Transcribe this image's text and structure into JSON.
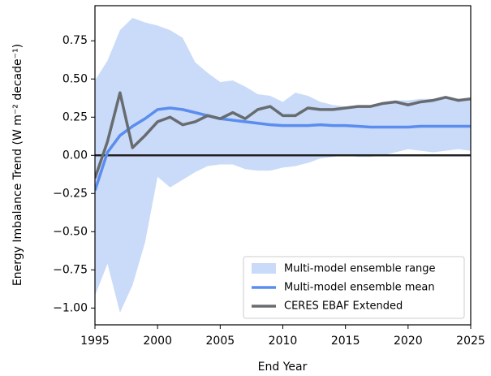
{
  "chart_data": {
    "type": "line",
    "xlabel": "End Year",
    "ylabel": "Energy Imbalance Trend (W m⁻² decade⁻¹)",
    "x": [
      1995,
      1996,
      1997,
      1998,
      1999,
      2000,
      2001,
      2002,
      2003,
      2004,
      2005,
      2006,
      2007,
      2008,
      2009,
      2010,
      2011,
      2012,
      2013,
      2014,
      2015,
      2016,
      2017,
      2018,
      2019,
      2020,
      2021,
      2022,
      2023,
      2024,
      2025
    ],
    "series": [
      {
        "name": "Multi-model ensemble range",
        "kind": "band",
        "color": "#c9dbf8",
        "high": [
          0.49,
          0.62,
          0.82,
          0.9,
          0.87,
          0.85,
          0.82,
          0.77,
          0.61,
          0.54,
          0.48,
          0.49,
          0.45,
          0.4,
          0.39,
          0.35,
          0.41,
          0.39,
          0.35,
          0.33,
          0.32,
          0.33,
          0.33,
          0.35,
          0.36,
          0.36,
          0.37,
          0.37,
          0.38,
          0.37,
          0.37
        ],
        "low": [
          -0.92,
          -0.71,
          -1.03,
          -0.85,
          -0.57,
          -0.14,
          -0.21,
          -0.16,
          -0.11,
          -0.07,
          -0.06,
          -0.06,
          -0.09,
          -0.1,
          -0.1,
          -0.08,
          -0.07,
          -0.05,
          -0.02,
          -0.01,
          0.0,
          -0.01,
          -0.01,
          0.0,
          0.02,
          0.04,
          0.03,
          0.02,
          0.03,
          0.04,
          0.03
        ]
      },
      {
        "name": "Multi-model ensemble mean",
        "kind": "line",
        "color": "#5b8def",
        "values": [
          -0.23,
          0.02,
          0.13,
          0.19,
          0.24,
          0.3,
          0.31,
          0.3,
          0.28,
          0.26,
          0.24,
          0.23,
          0.22,
          0.21,
          0.2,
          0.195,
          0.195,
          0.195,
          0.2,
          0.195,
          0.195,
          0.19,
          0.185,
          0.185,
          0.185,
          0.185,
          0.19,
          0.19,
          0.19,
          0.19,
          0.19
        ]
      },
      {
        "name": "CERES EBAF Extended",
        "kind": "line",
        "color": "#686b70",
        "values": [
          -0.15,
          0.09,
          0.41,
          0.05,
          0.13,
          0.22,
          0.25,
          0.2,
          0.22,
          0.26,
          0.24,
          0.28,
          0.24,
          0.3,
          0.32,
          0.26,
          0.26,
          0.31,
          0.3,
          0.3,
          0.31,
          0.32,
          0.32,
          0.34,
          0.35,
          0.33,
          0.35,
          0.36,
          0.38,
          0.36,
          0.37
        ]
      }
    ],
    "hline": 0,
    "xlim": [
      1995,
      2025
    ],
    "ylim": [
      -1.11,
      0.98
    ],
    "xticks": [
      1995,
      2000,
      2005,
      2010,
      2015,
      2020,
      2025
    ],
    "yticks": [
      {
        "value": -1,
        "label": "−1.00"
      },
      {
        "value": -0.75,
        "label": "−0.75"
      },
      {
        "value": -0.5,
        "label": "−0.50"
      },
      {
        "value": -0.25,
        "label": "−0.25"
      },
      {
        "value": 0,
        "label": "0.00"
      },
      {
        "value": 0.25,
        "label": "0.25"
      },
      {
        "value": 0.5,
        "label": "0.50"
      },
      {
        "value": 0.75,
        "label": "0.75"
      }
    ],
    "legend": "lower right"
  }
}
